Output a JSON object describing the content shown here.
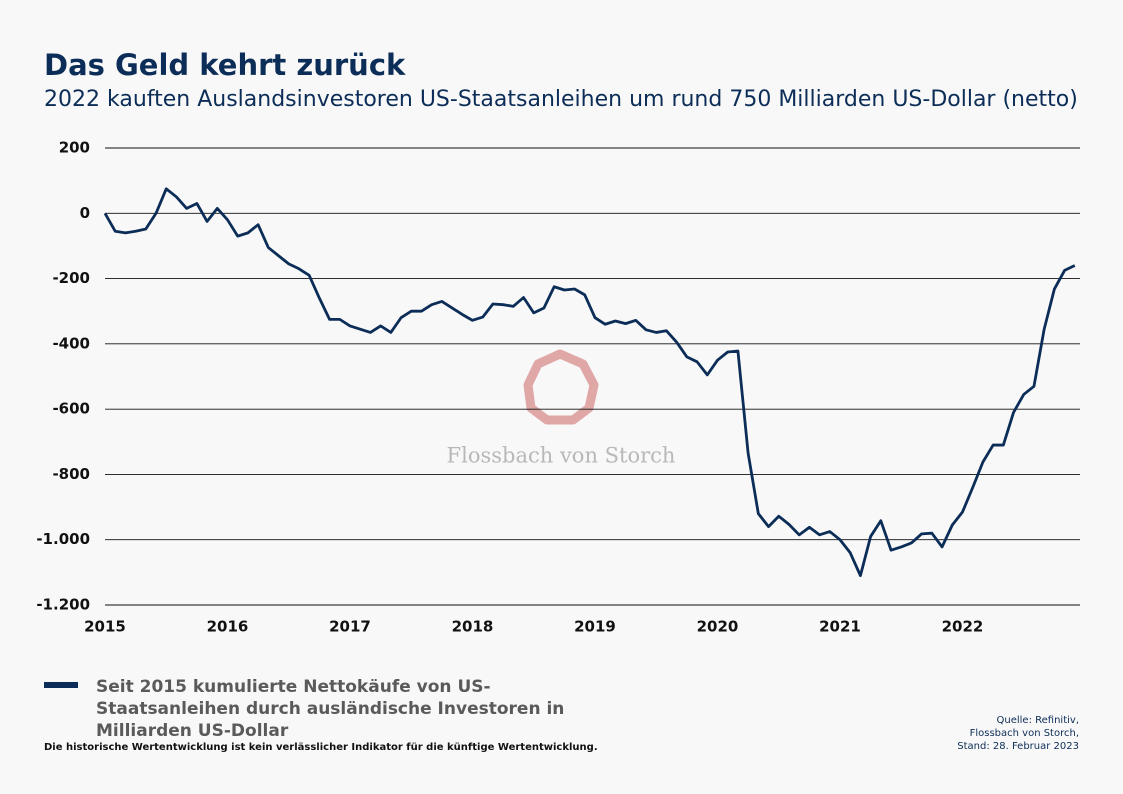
{
  "chart_data": {
    "type": "line",
    "title": "Das Geld kehrt zurück",
    "subtitle": "2022 kauften Auslandsinvestoren US-Staatsanleihen um rund 750 Milliarden US-Dollar (netto)",
    "categories": [
      "2015",
      null,
      null,
      null,
      null,
      null,
      null,
      null,
      null,
      null,
      null,
      null,
      "2016",
      null,
      null,
      null,
      null,
      null,
      null,
      null,
      null,
      null,
      null,
      null,
      "2017",
      null,
      null,
      null,
      null,
      null,
      null,
      null,
      null,
      null,
      null,
      null,
      "2018",
      null,
      null,
      null,
      null,
      null,
      null,
      null,
      null,
      null,
      null,
      null,
      "2019",
      null,
      null,
      null,
      null,
      null,
      null,
      null,
      null,
      null,
      null,
      null,
      "2020",
      null,
      null,
      null,
      null,
      null,
      null,
      null,
      null,
      null,
      null,
      null,
      "2021",
      null,
      null,
      null,
      null,
      null,
      null,
      null,
      null,
      null,
      null,
      null,
      "2022",
      null,
      null,
      null,
      null,
      null,
      null,
      null,
      null,
      null,
      null,
      null
    ],
    "series": [
      {
        "name": "Seit 2015 kumulierte Nettokäufe von US-Staatsanleihen durch ausländische Investoren in Milliarden US-Dollar",
        "color": "#0c2d57",
        "values": [
          0,
          -55,
          -60,
          -55,
          -48,
          0,
          75,
          50,
          15,
          30,
          -25,
          15,
          -20,
          -70,
          -60,
          -35,
          -105,
          -130,
          -155,
          -170,
          -190,
          -260,
          -325,
          -325,
          -345,
          -355,
          -365,
          -345,
          -365,
          -320,
          -300,
          -300,
          -280,
          -270,
          -290,
          -310,
          -328,
          -318,
          -278,
          -280,
          -285,
          -258,
          -305,
          -290,
          -225,
          -235,
          -232,
          -250,
          -320,
          -340,
          -330,
          -338,
          -328,
          -357,
          -365,
          -360,
          -395,
          -440,
          -455,
          -495,
          -450,
          -425,
          -422,
          -735,
          -920,
          -960,
          -928,
          -953,
          -985,
          -962,
          -985,
          -975,
          -1000,
          -1040,
          -1110,
          -990,
          -942,
          -1032,
          -1022,
          -1010,
          -982,
          -980,
          -1022,
          -955,
          -915,
          -840,
          -762,
          -710,
          -710,
          -610,
          -555,
          -530,
          -355,
          -232,
          -175,
          -160
        ]
      }
    ],
    "ylim": [
      -1200,
      200
    ],
    "yticks": [
      200,
      0,
      -200,
      -400,
      -600,
      -800,
      {
        "value": -1000,
        "label": "-1.000"
      },
      {
        "value": -1200,
        "label": "-1.200"
      }
    ],
    "grid": true,
    "watermark": "Flossbach von Storch",
    "source": [
      "Quelle: Refinitiv,",
      "Flossbach von Storch,",
      "Stand: 28. Februar 2023"
    ],
    "disclaimer": "Die historische Wertentwicklung ist kein verlässlicher Indikator für die künftige Wertentwicklung."
  }
}
